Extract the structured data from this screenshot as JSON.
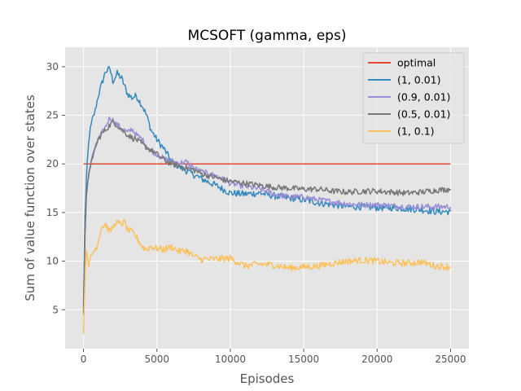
{
  "chart_data": {
    "type": "line",
    "title": "MCSOFT (gamma, eps)",
    "xlabel": "Episodes",
    "ylabel": "Sum of value function over states",
    "xlim": [
      -1250,
      26250
    ],
    "ylim": [
      1.0,
      32.0
    ],
    "xticks": [
      0,
      5000,
      10000,
      15000,
      20000,
      25000
    ],
    "xtick_labels": [
      "0",
      "5000",
      "10000",
      "15000",
      "20000",
      "25000"
    ],
    "yticks": [
      5,
      10,
      15,
      20,
      25,
      30
    ],
    "ytick_labels": [
      "5",
      "10",
      "15",
      "20",
      "25",
      "30"
    ],
    "grid": true,
    "legend_position": "top-right",
    "series": [
      {
        "name": "optimal",
        "color": "#E24A33",
        "jitter": 0,
        "x": [
          0,
          25000
        ],
        "y": [
          20,
          20
        ]
      },
      {
        "name": "(1, 0.01)",
        "color": "#348ABD",
        "jitter": 0.35,
        "x": [
          0,
          100,
          200,
          300,
          400,
          600,
          800,
          1000,
          1200,
          1500,
          1800,
          2000,
          2300,
          2600,
          3000,
          3300,
          3600,
          4000,
          4300,
          4600,
          5000,
          5500,
          6000,
          6500,
          7000,
          8000,
          9000,
          10000,
          11000,
          12000,
          13000,
          14000,
          15000,
          16000,
          17000,
          18000,
          19000,
          20000,
          21000,
          22000,
          23000,
          24000,
          25000
        ],
        "y": [
          5.5,
          14.5,
          18.5,
          21.0,
          23.0,
          24.5,
          25.5,
          27.0,
          28.0,
          29.5,
          29.8,
          28.5,
          29.3,
          28.8,
          27.2,
          26.8,
          27.0,
          26.0,
          25.0,
          23.5,
          22.5,
          21.5,
          20.3,
          19.7,
          19.3,
          18.5,
          17.8,
          17.0,
          16.9,
          17.0,
          16.7,
          16.5,
          16.3,
          16.0,
          15.8,
          15.6,
          15.6,
          15.5,
          15.5,
          15.4,
          15.3,
          15.1,
          15.1
        ]
      },
      {
        "name": "(0.9, 0.01)",
        "color": "#988ED5",
        "jitter": 0.3,
        "x": [
          0,
          100,
          200,
          300,
          400,
          600,
          800,
          1000,
          1200,
          1500,
          1800,
          2000,
          2300,
          2600,
          3000,
          3300,
          3600,
          4000,
          4500,
          5000,
          5500,
          6000,
          6500,
          7000,
          7500,
          8000,
          9000,
          10000,
          11000,
          12000,
          13000,
          14000,
          15000,
          16000,
          17000,
          18000,
          19000,
          20000,
          21000,
          22000,
          23000,
          24000,
          25000
        ],
        "y": [
          5.0,
          13.0,
          17.0,
          18.5,
          19.5,
          20.5,
          21.5,
          22.5,
          23.0,
          23.8,
          24.8,
          24.5,
          24.0,
          23.7,
          23.2,
          23.6,
          23.0,
          22.5,
          21.5,
          21.0,
          20.5,
          20.3,
          20.1,
          20.2,
          19.6,
          19.2,
          18.8,
          18.0,
          17.7,
          17.4,
          16.9,
          16.6,
          16.6,
          16.3,
          16.1,
          15.9,
          15.8,
          15.8,
          15.7,
          15.6,
          15.6,
          15.6,
          15.6
        ]
      },
      {
        "name": "(0.5, 0.01)",
        "color": "#777777",
        "jitter": 0.3,
        "x": [
          0,
          100,
          200,
          300,
          400,
          600,
          800,
          1000,
          1200,
          1500,
          1800,
          2000,
          2300,
          2600,
          3000,
          3300,
          3600,
          4000,
          4500,
          5000,
          5500,
          6000,
          6500,
          7000,
          7500,
          8000,
          9000,
          10000,
          11000,
          12000,
          13000,
          14000,
          15000,
          16000,
          17000,
          18000,
          19000,
          20000,
          21000,
          22000,
          23000,
          24000,
          25000
        ],
        "y": [
          4.5,
          12.5,
          16.5,
          18.0,
          19.5,
          20.5,
          21.8,
          22.5,
          23.0,
          23.5,
          24.0,
          24.3,
          24.0,
          23.5,
          23.0,
          22.7,
          22.5,
          22.0,
          21.5,
          21.0,
          20.4,
          20.0,
          19.8,
          19.6,
          19.4,
          19.0,
          18.6,
          18.2,
          18.0,
          17.8,
          17.6,
          17.5,
          17.4,
          17.4,
          17.2,
          17.1,
          17.2,
          17.2,
          17.1,
          17.0,
          17.1,
          17.3,
          17.4
        ]
      },
      {
        "name": "(1, 0.1)",
        "color": "#FBC15E",
        "jitter": 0.35,
        "x": [
          0,
          100,
          200,
          300,
          400,
          500,
          700,
          900,
          1000,
          1200,
          1500,
          1800,
          2000,
          2200,
          2500,
          2800,
          3000,
          3300,
          3600,
          4000,
          4300,
          4600,
          5000,
          5500,
          6000,
          6500,
          7000,
          7500,
          8000,
          9000,
          10000,
          11000,
          12000,
          13000,
          14000,
          15000,
          16000,
          17000,
          18000,
          19000,
          20000,
          21000,
          22000,
          23000,
          24000,
          25000
        ],
        "y": [
          2.5,
          8.0,
          11.5,
          10.0,
          9.5,
          10.5,
          11.0,
          11.5,
          12.0,
          13.5,
          13.8,
          13.0,
          13.5,
          14.0,
          13.8,
          14.0,
          13.2,
          13.0,
          12.5,
          11.5,
          11.2,
          11.5,
          11.3,
          11.2,
          11.5,
          11.0,
          11.1,
          10.5,
          10.2,
          10.2,
          10.3,
          9.5,
          9.7,
          9.6,
          9.3,
          9.4,
          9.5,
          9.8,
          10.0,
          10.1,
          10.0,
          9.8,
          9.8,
          9.9,
          9.5,
          9.4
        ]
      }
    ]
  }
}
